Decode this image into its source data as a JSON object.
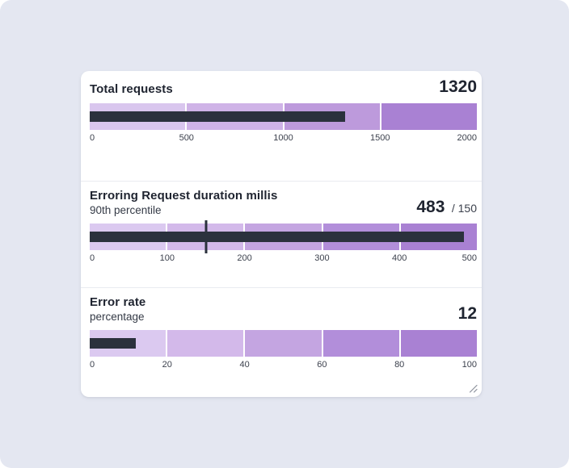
{
  "panel": {
    "background_color": "#e4e7f1",
    "card_color": "#ffffff",
    "divider_color": "#e9ebf0",
    "bar_color": "#2b313d",
    "resize_handle": "resize-grip"
  },
  "chart_data": [
    {
      "type": "bullet",
      "title": "Total requests",
      "subtitle": "",
      "value": 1320,
      "value_display": "1320",
      "target": null,
      "target_display": "",
      "range": [
        0,
        2000
      ],
      "ticks": [
        "0",
        "500",
        "1000",
        "1500",
        "2000"
      ],
      "bands": [
        {
          "from": 0,
          "to": 500,
          "color": "#d9c6ee"
        },
        {
          "from": 500,
          "to": 1000,
          "color": "#cfb3e7"
        },
        {
          "from": 1000,
          "to": 1500,
          "color": "#bd9adc"
        },
        {
          "from": 1500,
          "to": 2000,
          "color": "#a981d3"
        }
      ],
      "bar_color": "#2b313d"
    },
    {
      "type": "bullet",
      "title": "Erroring Request duration millis",
      "subtitle": "90th percentile",
      "value": 483,
      "value_display": "483",
      "target": 150,
      "target_display": "/ 150",
      "range": [
        0,
        500
      ],
      "ticks": [
        "0",
        "100",
        "200",
        "300",
        "400",
        "500"
      ],
      "bands": [
        {
          "from": 0,
          "to": 100,
          "color": "#dbc9f0"
        },
        {
          "from": 100,
          "to": 200,
          "color": "#d3b9ea"
        },
        {
          "from": 200,
          "to": 300,
          "color": "#c4a5e1"
        },
        {
          "from": 300,
          "to": 400,
          "color": "#b28eda"
        },
        {
          "from": 400,
          "to": 500,
          "color": "#a981d3"
        }
      ],
      "bar_color": "#2b313d"
    },
    {
      "type": "bullet",
      "title": "Error rate",
      "subtitle": "percentage",
      "value": 12,
      "value_display": "12",
      "target": null,
      "target_display": "",
      "range": [
        0,
        100
      ],
      "ticks": [
        "0",
        "20",
        "40",
        "60",
        "80",
        "100"
      ],
      "bands": [
        {
          "from": 0,
          "to": 20,
          "color": "#dbc9f0"
        },
        {
          "from": 20,
          "to": 40,
          "color": "#d3b9ea"
        },
        {
          "from": 40,
          "to": 60,
          "color": "#c4a5e1"
        },
        {
          "from": 60,
          "to": 80,
          "color": "#b28eda"
        },
        {
          "from": 80,
          "to": 100,
          "color": "#a981d3"
        }
      ],
      "bar_color": "#2b313d"
    }
  ]
}
